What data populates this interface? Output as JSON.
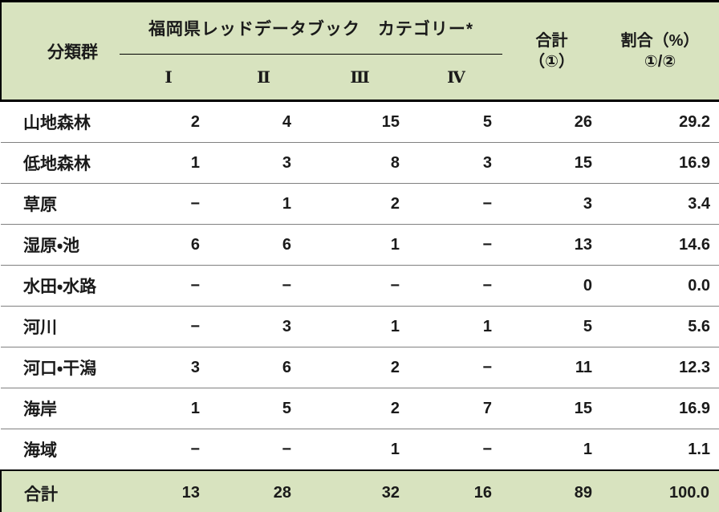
{
  "colors": {
    "band_green": "#d8e3bf",
    "outer_border_black": "#000000",
    "row_separator_gray": "#808080",
    "text_black": "#1a1a1a",
    "body_background": "#ffffff"
  },
  "chart_data": {
    "type": "table",
    "title": "",
    "header": {
      "group_col": "分類群",
      "category_group": "福岡県レッドデータブック　カテゴリー*",
      "category_cols": [
        "Ⅰ",
        "Ⅱ",
        "Ⅲ",
        "Ⅳ"
      ],
      "total_line1": "合計",
      "total_line2": "（①）",
      "ratio_line1": "割合（%）",
      "ratio_line2": "①/②"
    },
    "rows": [
      {
        "label": "山地森林",
        "values": [
          "2",
          "4",
          "15",
          "5",
          "26",
          "29.2"
        ]
      },
      {
        "label": "低地森林",
        "values": [
          "1",
          "3",
          "8",
          "3",
          "15",
          "16.9"
        ]
      },
      {
        "label": "草原",
        "values": [
          "−",
          "1",
          "2",
          "−",
          "3",
          "3.4"
        ]
      },
      {
        "label": "湿原・池",
        "values": [
          "6",
          "6",
          "1",
          "−",
          "13",
          "14.6"
        ]
      },
      {
        "label": "水田・水路",
        "values": [
          "−",
          "−",
          "−",
          "−",
          "0",
          "0.0"
        ]
      },
      {
        "label": "河川",
        "values": [
          "−",
          "3",
          "1",
          "1",
          "5",
          "5.6"
        ]
      },
      {
        "label": "河口・干潟",
        "values": [
          "3",
          "6",
          "2",
          "−",
          "11",
          "12.3"
        ]
      },
      {
        "label": "海岸",
        "values": [
          "1",
          "5",
          "2",
          "7",
          "15",
          "16.9"
        ]
      },
      {
        "label": "海域",
        "values": [
          "−",
          "−",
          "1",
          "−",
          "1",
          "1.1"
        ]
      }
    ],
    "total_row": {
      "label": "合計",
      "values": [
        "13",
        "28",
        "32",
        "16",
        "89",
        "100.0"
      ]
    }
  }
}
